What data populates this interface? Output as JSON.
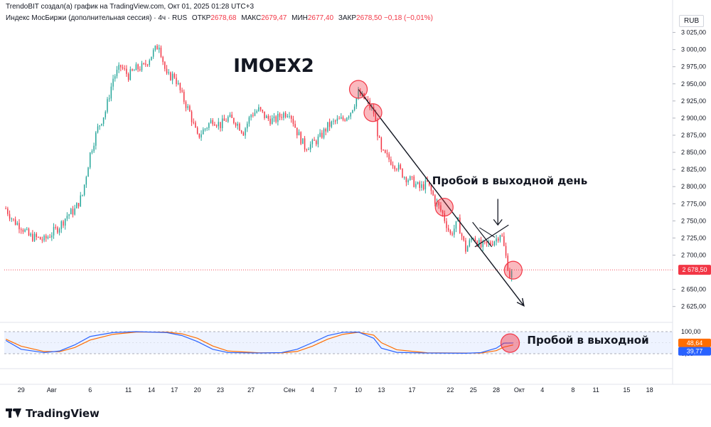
{
  "header": {
    "author_line": "TrendoBIT создал(а) график на TradingView.com, Окт 01, 2025 01:28 UTC+3",
    "symbol": "Индекс МосБиржи (дополнительная сессия) · 4ч · RUS",
    "open_label": "ОТКР",
    "open": "2678,68",
    "high_label": "МАКС",
    "high": "2679,47",
    "low_label": "МИН",
    "low": "2677,40",
    "close_label": "ЗАКР",
    "close": "2678,50",
    "change": "−0,18 (−0,01%)"
  },
  "currency": "RUB",
  "brand": "TradingView",
  "colors": {
    "up": "#26a69a",
    "down": "#f23645",
    "accent": "#f23645",
    "osc_k": "#2962ff",
    "osc_d": "#ff6d00"
  },
  "chart_data": {
    "type": "candlestick",
    "title": "IMOEX2",
    "timeframe": "4ч",
    "y_ticks": [
      3025,
      3000,
      2975,
      2950,
      2925,
      2900,
      2875,
      2850,
      2825,
      2800,
      2775,
      2750,
      2725,
      2700,
      2650,
      2625
    ],
    "y_tick_labels": [
      "3 025,00",
      "3 000,00",
      "2 975,00",
      "2 950,00",
      "2 925,00",
      "2 900,00",
      "2 875,00",
      "2 850,00",
      "2 825,00",
      "2 800,00",
      "2 775,00",
      "2 750,00",
      "2 725,00",
      "2 700,00",
      "2 650,00",
      "2 625,00"
    ],
    "ylim": [
      2607,
      3036
    ],
    "last_price": 2678.5,
    "last_price_label": "2 678,50",
    "x_ticks": [
      {
        "label": "29",
        "d": -3
      },
      {
        "label": "Авг",
        "d": 1
      },
      {
        "label": "6",
        "d": 6
      },
      {
        "label": "11",
        "d": 11
      },
      {
        "label": "14",
        "d": 14
      },
      {
        "label": "17",
        "d": 17
      },
      {
        "label": "20",
        "d": 20
      },
      {
        "label": "23",
        "d": 23
      },
      {
        "label": "27",
        "d": 27
      },
      {
        "label": "Сен",
        "d": 32
      },
      {
        "label": "4",
        "d": 35
      },
      {
        "label": "7",
        "d": 38
      },
      {
        "label": "10",
        "d": 41
      },
      {
        "label": "13",
        "d": 44
      },
      {
        "label": "17",
        "d": 48
      },
      {
        "label": "22",
        "d": 53
      },
      {
        "label": "25",
        "d": 56
      },
      {
        "label": "28",
        "d": 59
      },
      {
        "label": "Окт",
        "d": 62
      },
      {
        "label": "4",
        "d": 65
      },
      {
        "label": "8",
        "d": 69
      },
      {
        "label": "11",
        "d": 72
      },
      {
        "label": "15",
        "d": 76
      },
      {
        "label": "18",
        "d": 79
      }
    ],
    "xlim": [
      -5.2,
      82
    ],
    "price_path": [
      {
        "d": -5,
        "p": 2768
      },
      {
        "d": -4,
        "p": 2750
      },
      {
        "d": -3,
        "p": 2742
      },
      {
        "d": -2,
        "p": 2728
      },
      {
        "d": -1,
        "p": 2725
      },
      {
        "d": 0,
        "p": 2722
      },
      {
        "d": 1,
        "p": 2732
      },
      {
        "d": 2,
        "p": 2742
      },
      {
        "d": 3,
        "p": 2758
      },
      {
        "d": 4,
        "p": 2766
      },
      {
        "d": 5,
        "p": 2788
      },
      {
        "d": 6,
        "p": 2848
      },
      {
        "d": 7,
        "p": 2885
      },
      {
        "d": 8,
        "p": 2910
      },
      {
        "d": 9,
        "p": 2958
      },
      {
        "d": 10,
        "p": 2975
      },
      {
        "d": 11,
        "p": 2962
      },
      {
        "d": 12,
        "p": 2972
      },
      {
        "d": 13,
        "p": 2975
      },
      {
        "d": 14,
        "p": 2992
      },
      {
        "d": 15,
        "p": 3008
      },
      {
        "d": 16,
        "p": 2960
      },
      {
        "d": 17,
        "p": 2962
      },
      {
        "d": 18,
        "p": 2932
      },
      {
        "d": 19,
        "p": 2908
      },
      {
        "d": 20,
        "p": 2872
      },
      {
        "d": 21,
        "p": 2885
      },
      {
        "d": 22,
        "p": 2898
      },
      {
        "d": 23,
        "p": 2890
      },
      {
        "d": 24,
        "p": 2900
      },
      {
        "d": 25,
        "p": 2895
      },
      {
        "d": 26,
        "p": 2880
      },
      {
        "d": 27,
        "p": 2905
      },
      {
        "d": 28,
        "p": 2912
      },
      {
        "d": 29,
        "p": 2900
      },
      {
        "d": 30,
        "p": 2896
      },
      {
        "d": 31,
        "p": 2905
      },
      {
        "d": 32,
        "p": 2910
      },
      {
        "d": 33,
        "p": 2880
      },
      {
        "d": 34,
        "p": 2858
      },
      {
        "d": 35,
        "p": 2862
      },
      {
        "d": 36,
        "p": 2872
      },
      {
        "d": 37,
        "p": 2888
      },
      {
        "d": 38,
        "p": 2895
      },
      {
        "d": 39,
        "p": 2898
      },
      {
        "d": 40,
        "p": 2910
      },
      {
        "d": 41,
        "p": 2935
      },
      {
        "d": 42,
        "p": 2926
      },
      {
        "d": 43,
        "p": 2908
      },
      {
        "d": 44,
        "p": 2850
      },
      {
        "d": 45,
        "p": 2840
      },
      {
        "d": 46,
        "p": 2830
      },
      {
        "d": 47,
        "p": 2815
      },
      {
        "d": 48,
        "p": 2808
      },
      {
        "d": 49,
        "p": 2798
      },
      {
        "d": 50,
        "p": 2805
      },
      {
        "d": 51,
        "p": 2780
      },
      {
        "d": 52,
        "p": 2760
      },
      {
        "d": 53,
        "p": 2730
      },
      {
        "d": 54,
        "p": 2748
      },
      {
        "d": 55,
        "p": 2708
      },
      {
        "d": 56,
        "p": 2728
      },
      {
        "d": 57,
        "p": 2712
      },
      {
        "d": 58,
        "p": 2716
      },
      {
        "d": 59,
        "p": 2724
      },
      {
        "d": 59.6,
        "p": 2734
      },
      {
        "d": 60.2,
        "p": 2700
      },
      {
        "d": 60.8,
        "p": 2668
      },
      {
        "d": 61.2,
        "p": 2678.5
      }
    ],
    "candle_step": 0.25,
    "oscillator": {
      "type": "stochastic",
      "y_ticks": [
        100,
        0
      ],
      "y_tick_labels": [
        "100,00",
        "0,00"
      ],
      "k_value": 48.64,
      "k_label": "48,64",
      "d_value": 39.77,
      "d_label": "39,77",
      "band_upper": 80,
      "band_lower": 20,
      "k_path": [
        {
          "d": -5,
          "v": 60
        },
        {
          "d": -3,
          "v": 20
        },
        {
          "d": 0,
          "v": 5
        },
        {
          "d": 2,
          "v": 12
        },
        {
          "d": 4,
          "v": 40
        },
        {
          "d": 6,
          "v": 78
        },
        {
          "d": 9,
          "v": 96
        },
        {
          "d": 12,
          "v": 100
        },
        {
          "d": 16,
          "v": 96
        },
        {
          "d": 18,
          "v": 82
        },
        {
          "d": 20,
          "v": 55
        },
        {
          "d": 22,
          "v": 20
        },
        {
          "d": 24,
          "v": 5
        },
        {
          "d": 28,
          "v": 3
        },
        {
          "d": 31,
          "v": 5
        },
        {
          "d": 33,
          "v": 20
        },
        {
          "d": 35,
          "v": 50
        },
        {
          "d": 37,
          "v": 82
        },
        {
          "d": 39,
          "v": 97
        },
        {
          "d": 41,
          "v": 98
        },
        {
          "d": 43,
          "v": 70
        },
        {
          "d": 44,
          "v": 25
        },
        {
          "d": 46,
          "v": 6
        },
        {
          "d": 50,
          "v": 3
        },
        {
          "d": 55,
          "v": 2
        },
        {
          "d": 57,
          "v": 5
        },
        {
          "d": 59,
          "v": 25
        },
        {
          "d": 60,
          "v": 48
        },
        {
          "d": 61.2,
          "v": 48.64
        }
      ],
      "d_path": [
        {
          "d": -5,
          "v": 66
        },
        {
          "d": -3,
          "v": 34
        },
        {
          "d": 0,
          "v": 10
        },
        {
          "d": 2,
          "v": 9
        },
        {
          "d": 4,
          "v": 28
        },
        {
          "d": 6,
          "v": 62
        },
        {
          "d": 9,
          "v": 88
        },
        {
          "d": 12,
          "v": 98
        },
        {
          "d": 16,
          "v": 98
        },
        {
          "d": 18,
          "v": 90
        },
        {
          "d": 20,
          "v": 70
        },
        {
          "d": 22,
          "v": 35
        },
        {
          "d": 24,
          "v": 12
        },
        {
          "d": 28,
          "v": 4
        },
        {
          "d": 31,
          "v": 4
        },
        {
          "d": 33,
          "v": 10
        },
        {
          "d": 35,
          "v": 34
        },
        {
          "d": 37,
          "v": 66
        },
        {
          "d": 39,
          "v": 88
        },
        {
          "d": 41,
          "v": 97
        },
        {
          "d": 43,
          "v": 84
        },
        {
          "d": 44,
          "v": 50
        },
        {
          "d": 46,
          "v": 18
        },
        {
          "d": 50,
          "v": 4
        },
        {
          "d": 55,
          "v": 3
        },
        {
          "d": 57,
          "v": 3
        },
        {
          "d": 59,
          "v": 14
        },
        {
          "d": 60,
          "v": 30
        },
        {
          "d": 61.2,
          "v": 39.77
        }
      ]
    },
    "annotations": {
      "label_breakout_day": "Пробой в выходной день",
      "label_breakout": "Пробой в выходной",
      "circles": [
        {
          "d": 41,
          "p": 2942
        },
        {
          "d": 42.9,
          "p": 2908
        },
        {
          "d": 52.2,
          "p": 2770
        },
        {
          "d": 61.2,
          "p": 2678
        }
      ],
      "osc_circle": {
        "d": 60.8,
        "v": 48
      },
      "trend_line": {
        "from": {
          "d": 41,
          "p": 2942
        },
        "to": {
          "d": 62.6,
          "p": 2626
        }
      }
    }
  }
}
